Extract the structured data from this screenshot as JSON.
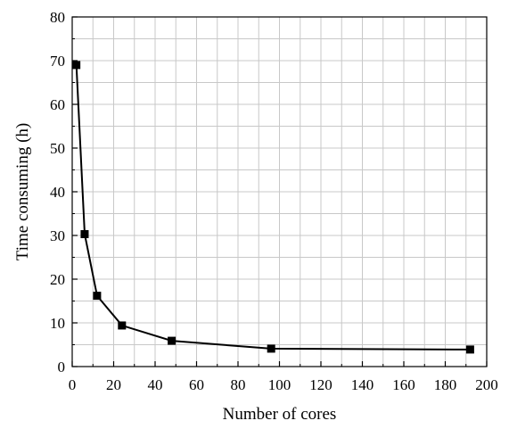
{
  "chart_data": {
    "type": "line",
    "title": "",
    "xlabel": "Number of cores",
    "ylabel": "Time consuming (h)",
    "xlim": [
      0,
      200
    ],
    "ylim": [
      0,
      80
    ],
    "x_ticks": [
      0,
      20,
      40,
      60,
      80,
      100,
      120,
      140,
      160,
      180,
      200
    ],
    "y_ticks": [
      0,
      10,
      20,
      30,
      40,
      50,
      60,
      70,
      80
    ],
    "grid": true,
    "legend": "none",
    "marker": "square",
    "line_color": "#000000",
    "series": [
      {
        "x": [
          2,
          6,
          12,
          24,
          48,
          96,
          192
        ],
        "y": [
          69.0,
          30.3,
          16.2,
          9.4,
          5.9,
          4.1,
          3.9
        ]
      }
    ]
  }
}
